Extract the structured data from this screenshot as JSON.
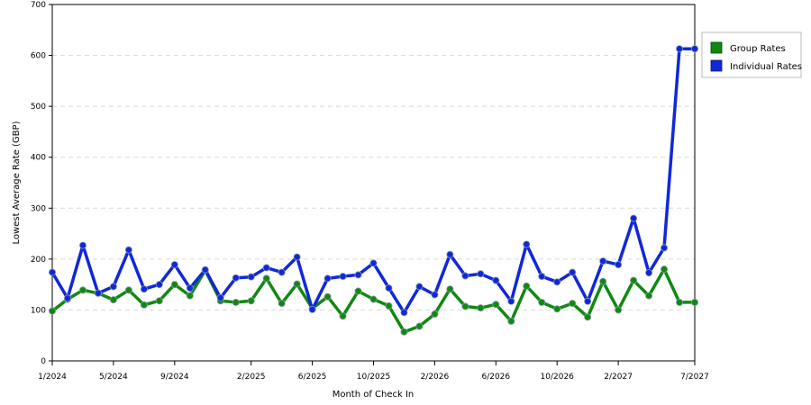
{
  "chart_data": {
    "type": "line",
    "xlabel": "Month of Check In",
    "ylabel": "Lowest Average Rate (GBP)",
    "ylim": [
      0,
      700
    ],
    "yticks": [
      0,
      100,
      200,
      300,
      400,
      500,
      600,
      700
    ],
    "x": [
      "1/2024",
      "2/2024",
      "3/2024",
      "4/2024",
      "5/2024",
      "6/2024",
      "7/2024",
      "8/2024",
      "9/2024",
      "10/2024",
      "11/2024",
      "12/2024",
      "1/2025",
      "2/2025",
      "3/2025",
      "4/2025",
      "5/2025",
      "6/2025",
      "7/2025",
      "8/2025",
      "9/2025",
      "10/2025",
      "11/2025",
      "12/2025",
      "1/2026",
      "2/2026",
      "3/2026",
      "4/2026",
      "5/2026",
      "6/2026",
      "7/2026",
      "8/2026",
      "9/2026",
      "10/2026",
      "11/2026",
      "12/2026",
      "1/2027",
      "2/2027",
      "3/2027",
      "4/2027",
      "5/2027",
      "6/2027",
      "7/2027"
    ],
    "xtick_labels": [
      "1/2024",
      "5/2024",
      "9/2024",
      "2/2025",
      "6/2025",
      "10/2025",
      "2/2026",
      "6/2026",
      "10/2026",
      "2/2027",
      "7/2027"
    ],
    "grid": "horizontal dashed",
    "legend_position": "right",
    "series": [
      {
        "name": "Group Rates",
        "color": "#118811",
        "values": [
          98,
          121,
          139,
          133,
          120,
          139,
          110,
          118,
          150,
          128,
          178,
          118,
          115,
          118,
          162,
          113,
          151,
          103,
          126,
          88,
          137,
          121,
          108,
          57,
          68,
          92,
          141,
          107,
          104,
          111,
          78,
          147,
          115,
          102,
          113,
          86,
          156,
          100,
          158,
          128,
          180,
          115,
          115
        ]
      },
      {
        "name": "Individual Rates",
        "color": "#1028d8",
        "values": [
          174,
          123,
          227,
          133,
          146,
          218,
          141,
          150,
          189,
          143,
          179,
          124,
          163,
          165,
          183,
          174,
          204,
          101,
          162,
          166,
          169,
          192,
          143,
          95,
          146,
          130,
          209,
          167,
          171,
          158,
          117,
          229,
          166,
          155,
          174,
          117,
          196,
          189,
          280,
          173,
          222,
          613,
          613
        ]
      }
    ]
  },
  "legend": {
    "group_label": "Group Rates",
    "individual_label": "Individual Rates"
  }
}
